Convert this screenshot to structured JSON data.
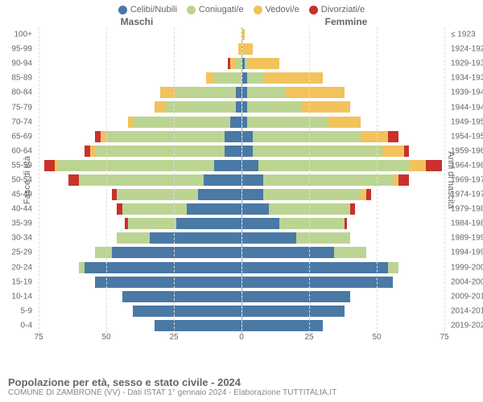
{
  "legend": [
    {
      "label": "Celibi/Nubili",
      "color": "#4a79a6"
    },
    {
      "label": "Coniugati/e",
      "color": "#bcd492"
    },
    {
      "label": "Vedovi/e",
      "color": "#f2c25d"
    },
    {
      "label": "Divorziati/e",
      "color": "#c9312c"
    }
  ],
  "header_male": "Maschi",
  "header_female": "Femmine",
  "ylabel_left": "Fasce di età",
  "ylabel_right": "Anni di nascita",
  "axis_ticks": [
    75,
    50,
    25,
    0,
    25,
    50,
    75
  ],
  "x_max": 75,
  "title": "Popolazione per età, sesso e stato civile - 2024",
  "subtitle": "COMUNE DI ZAMBRONE (VV) - Dati ISTAT 1° gennaio 2024 - Elaborazione TUTTITALIA.IT",
  "colors": {
    "celibi": "#4a79a6",
    "coniugati": "#bcd492",
    "vedovi": "#f2c25d",
    "divorziati": "#c9312c",
    "text": "#666666",
    "grid": "#dddddd",
    "bg": "#ffffff"
  },
  "chart_type": "population-pyramid",
  "rows": [
    {
      "age": "100+",
      "birth": "≤ 1923",
      "m": {
        "c": 0,
        "co": 0,
        "v": 0,
        "d": 0
      },
      "f": {
        "c": 0,
        "co": 0,
        "v": 1,
        "d": 0
      }
    },
    {
      "age": "95-99",
      "birth": "1924-1928",
      "m": {
        "c": 0,
        "co": 0,
        "v": 1,
        "d": 0
      },
      "f": {
        "c": 0,
        "co": 0,
        "v": 4,
        "d": 0
      }
    },
    {
      "age": "90-94",
      "birth": "1929-1933",
      "m": {
        "c": 0,
        "co": 2,
        "v": 2,
        "d": 1
      },
      "f": {
        "c": 1,
        "co": 1,
        "v": 12,
        "d": 0
      }
    },
    {
      "age": "85-89",
      "birth": "1934-1938",
      "m": {
        "c": 0,
        "co": 10,
        "v": 3,
        "d": 0
      },
      "f": {
        "c": 2,
        "co": 6,
        "v": 22,
        "d": 0
      }
    },
    {
      "age": "80-84",
      "birth": "1939-1943",
      "m": {
        "c": 2,
        "co": 22,
        "v": 6,
        "d": 0
      },
      "f": {
        "c": 2,
        "co": 14,
        "v": 22,
        "d": 0
      }
    },
    {
      "age": "75-79",
      "birth": "1944-1948",
      "m": {
        "c": 2,
        "co": 26,
        "v": 4,
        "d": 0
      },
      "f": {
        "c": 2,
        "co": 20,
        "v": 18,
        "d": 0
      }
    },
    {
      "age": "70-74",
      "birth": "1949-1953",
      "m": {
        "c": 4,
        "co": 36,
        "v": 2,
        "d": 0
      },
      "f": {
        "c": 2,
        "co": 30,
        "v": 12,
        "d": 0
      }
    },
    {
      "age": "65-69",
      "birth": "1954-1958",
      "m": {
        "c": 6,
        "co": 44,
        "v": 2,
        "d": 2
      },
      "f": {
        "c": 4,
        "co": 40,
        "v": 10,
        "d": 4
      }
    },
    {
      "age": "60-64",
      "birth": "1959-1963",
      "m": {
        "c": 6,
        "co": 48,
        "v": 2,
        "d": 2
      },
      "f": {
        "c": 4,
        "co": 48,
        "v": 8,
        "d": 2
      }
    },
    {
      "age": "55-59",
      "birth": "1964-1968",
      "m": {
        "c": 10,
        "co": 58,
        "v": 1,
        "d": 4
      },
      "f": {
        "c": 6,
        "co": 56,
        "v": 6,
        "d": 6
      }
    },
    {
      "age": "50-54",
      "birth": "1969-1973",
      "m": {
        "c": 14,
        "co": 46,
        "v": 0,
        "d": 4
      },
      "f": {
        "c": 8,
        "co": 48,
        "v": 2,
        "d": 4
      }
    },
    {
      "age": "45-49",
      "birth": "1974-1978",
      "m": {
        "c": 16,
        "co": 30,
        "v": 0,
        "d": 2
      },
      "f": {
        "c": 8,
        "co": 36,
        "v": 2,
        "d": 2
      }
    },
    {
      "age": "40-44",
      "birth": "1979-1983",
      "m": {
        "c": 20,
        "co": 24,
        "v": 0,
        "d": 2
      },
      "f": {
        "c": 10,
        "co": 30,
        "v": 0,
        "d": 2
      }
    },
    {
      "age": "35-39",
      "birth": "1984-1988",
      "m": {
        "c": 24,
        "co": 18,
        "v": 0,
        "d": 1
      },
      "f": {
        "c": 14,
        "co": 24,
        "v": 0,
        "d": 1
      }
    },
    {
      "age": "30-34",
      "birth": "1989-1993",
      "m": {
        "c": 34,
        "co": 12,
        "v": 0,
        "d": 0
      },
      "f": {
        "c": 20,
        "co": 20,
        "v": 0,
        "d": 0
      }
    },
    {
      "age": "25-29",
      "birth": "1994-1998",
      "m": {
        "c": 48,
        "co": 6,
        "v": 0,
        "d": 0
      },
      "f": {
        "c": 34,
        "co": 12,
        "v": 0,
        "d": 0
      }
    },
    {
      "age": "20-24",
      "birth": "1999-2003",
      "m": {
        "c": 58,
        "co": 2,
        "v": 0,
        "d": 0
      },
      "f": {
        "c": 54,
        "co": 4,
        "v": 0,
        "d": 0
      }
    },
    {
      "age": "15-19",
      "birth": "2004-2008",
      "m": {
        "c": 54,
        "co": 0,
        "v": 0,
        "d": 0
      },
      "f": {
        "c": 56,
        "co": 0,
        "v": 0,
        "d": 0
      }
    },
    {
      "age": "10-14",
      "birth": "2009-2013",
      "m": {
        "c": 44,
        "co": 0,
        "v": 0,
        "d": 0
      },
      "f": {
        "c": 40,
        "co": 0,
        "v": 0,
        "d": 0
      }
    },
    {
      "age": "5-9",
      "birth": "2014-2018",
      "m": {
        "c": 40,
        "co": 0,
        "v": 0,
        "d": 0
      },
      "f": {
        "c": 38,
        "co": 0,
        "v": 0,
        "d": 0
      }
    },
    {
      "age": "0-4",
      "birth": "2019-2023",
      "m": {
        "c": 32,
        "co": 0,
        "v": 0,
        "d": 0
      },
      "f": {
        "c": 30,
        "co": 0,
        "v": 0,
        "d": 0
      }
    }
  ]
}
